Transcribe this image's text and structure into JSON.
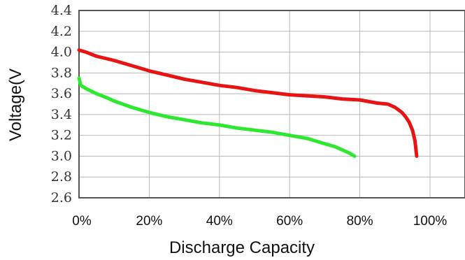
{
  "chart_data": {
    "type": "line",
    "xlabel": "Discharge Capacity",
    "ylabel": "Voltage(V",
    "xlim": [
      0,
      100
    ],
    "ylim": [
      2.6,
      4.4
    ],
    "x_ticks": [
      0,
      20,
      40,
      60,
      80,
      100
    ],
    "x_tick_labels": [
      "0%",
      "20%",
      "40%",
      "60%",
      "80%",
      "100%"
    ],
    "y_ticks": [
      2.6,
      2.8,
      3.0,
      3.2,
      3.4,
      3.6,
      3.8,
      4.0,
      4.2,
      4.4
    ],
    "y_tick_labels": [
      "2.6",
      "2.8",
      "3.0",
      "3.2",
      "3.4",
      "3.6",
      "3.8",
      "4.0",
      "4.2",
      "4.4"
    ],
    "grid": true,
    "legend": "none",
    "series": [
      {
        "color": "#e81414",
        "points": [
          [
            0,
            4.02
          ],
          [
            2,
            4.0
          ],
          [
            5,
            3.96
          ],
          [
            10,
            3.92
          ],
          [
            15,
            3.87
          ],
          [
            20,
            3.82
          ],
          [
            25,
            3.78
          ],
          [
            30,
            3.74
          ],
          [
            35,
            3.71
          ],
          [
            40,
            3.68
          ],
          [
            45,
            3.66
          ],
          [
            50,
            3.63
          ],
          [
            55,
            3.61
          ],
          [
            60,
            3.59
          ],
          [
            65,
            3.58
          ],
          [
            70,
            3.57
          ],
          [
            75,
            3.55
          ],
          [
            80,
            3.54
          ],
          [
            85,
            3.51
          ],
          [
            88,
            3.5
          ],
          [
            90,
            3.47
          ],
          [
            92,
            3.42
          ],
          [
            93,
            3.38
          ],
          [
            94,
            3.33
          ],
          [
            95,
            3.25
          ],
          [
            95.7,
            3.15
          ],
          [
            96,
            3.06
          ],
          [
            96.2,
            3.0
          ]
        ]
      },
      {
        "color": "#2ee830",
        "points": [
          [
            0,
            3.75
          ],
          [
            0.5,
            3.68
          ],
          [
            2,
            3.65
          ],
          [
            5,
            3.6
          ],
          [
            8,
            3.56
          ],
          [
            10,
            3.53
          ],
          [
            15,
            3.47
          ],
          [
            20,
            3.42
          ],
          [
            25,
            3.38
          ],
          [
            30,
            3.35
          ],
          [
            35,
            3.32
          ],
          [
            40,
            3.3
          ],
          [
            45,
            3.27
          ],
          [
            50,
            3.25
          ],
          [
            55,
            3.23
          ],
          [
            60,
            3.2
          ],
          [
            65,
            3.17
          ],
          [
            70,
            3.12
          ],
          [
            73,
            3.09
          ],
          [
            75,
            3.06
          ],
          [
            77,
            3.03
          ],
          [
            78.5,
            3.0
          ]
        ]
      }
    ]
  }
}
